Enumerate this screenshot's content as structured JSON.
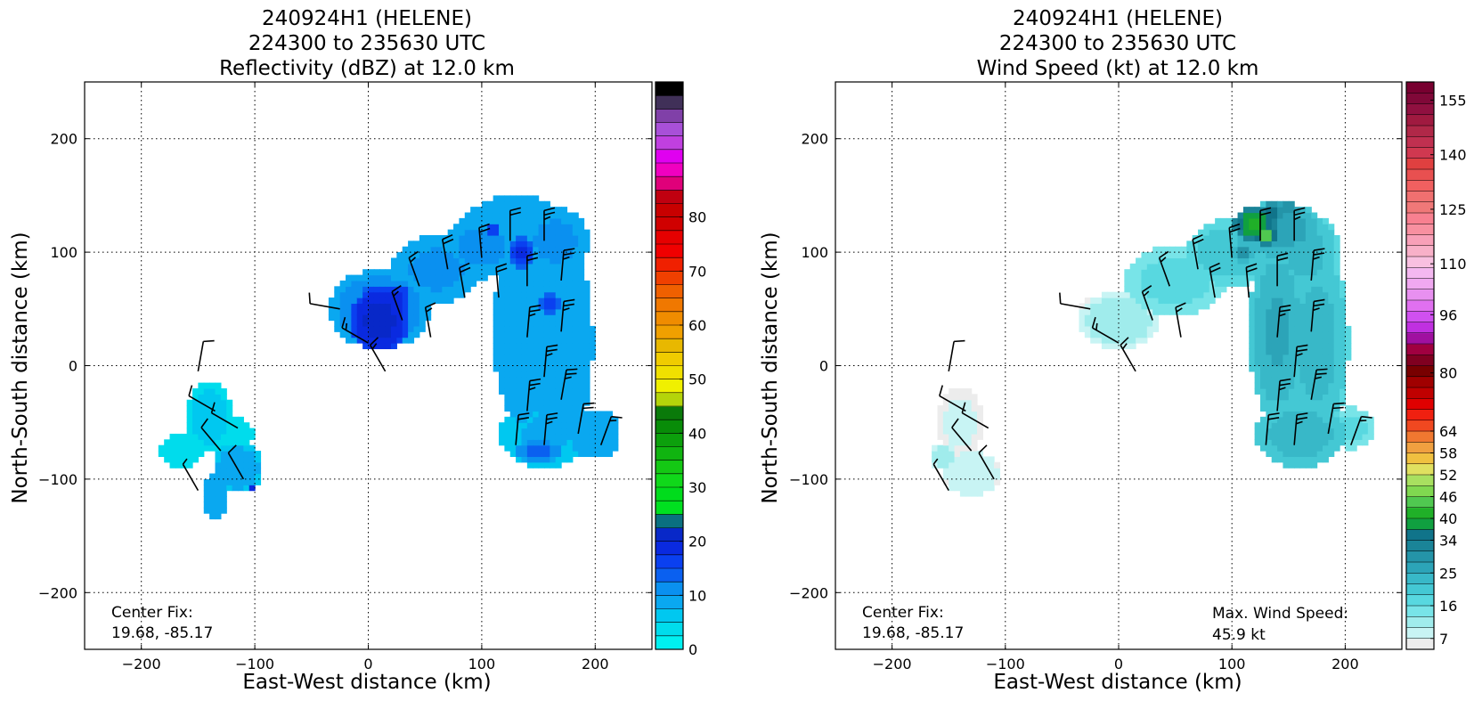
{
  "chart_data": [
    {
      "type": "heatmap",
      "title_lines": [
        "240924H1 (HELENE)",
        "224300 to 235630 UTC",
        "Reflectivity (dBZ) at 12.0 km"
      ],
      "xlabel": "East-West distance (km)",
      "ylabel": "North-South distance (km)",
      "xlim": [
        -250,
        250
      ],
      "ylim": [
        -250,
        250
      ],
      "xticks": [
        -200,
        -100,
        0,
        100,
        200
      ],
      "yticks": [
        -200,
        -100,
        0,
        100,
        200
      ],
      "tick_labels_x": [
        "−200",
        "−100",
        "0",
        "100",
        "200"
      ],
      "tick_labels_y": [
        "−200",
        "−100",
        "0",
        "100",
        "200"
      ],
      "grid": true,
      "colorbar": {
        "min": 0,
        "max": 80,
        "step": 2.5,
        "ticks": [
          0,
          10,
          20,
          30,
          40,
          50,
          60,
          70,
          80
        ],
        "tick_labels": [
          "0",
          "10",
          "20",
          "30",
          "40",
          "50",
          "60",
          "70",
          "80"
        ],
        "colors": [
          "#00f0f0",
          "#00dcec",
          "#00c8f0",
          "#0aa8f0",
          "#0a90f0",
          "#0a60f0",
          "#0a40f0",
          "#0a2ae0",
          "#0828c8",
          "#0a7080",
          "#00e020",
          "#00dc1c",
          "#10d81a",
          "#14c814",
          "#10b410",
          "#0ca00c",
          "#088c08",
          "#0a7a0a",
          "#b4d40a",
          "#f0f000",
          "#f0e000",
          "#f0cc00",
          "#e8b800",
          "#f0a000",
          "#f08c00",
          "#f07800",
          "#f06000",
          "#f04000",
          "#f02000",
          "#f00000",
          "#e60000",
          "#d00000",
          "#c80000",
          "#c00010",
          "#e0007a",
          "#f000c0",
          "#e000f0",
          "#c040e0",
          "#a850d8",
          "#8040a8",
          "#403058",
          "#000000"
        ]
      },
      "annotations": [
        {
          "line1": "Center Fix:",
          "line2": "19.68, -85.17"
        }
      ],
      "field": {
        "blobs": [
          {
            "x": 10,
            "y": 50,
            "rx": 45,
            "ry": 35,
            "v": 12
          },
          {
            "x": 60,
            "y": 85,
            "rx": 40,
            "ry": 30,
            "v": 11
          },
          {
            "x": 100,
            "y": 105,
            "rx": 35,
            "ry": 28,
            "v": 11
          },
          {
            "x": 130,
            "y": 125,
            "rx": 45,
            "ry": 25,
            "v": 10
          },
          {
            "x": 165,
            "y": 110,
            "rx": 30,
            "ry": 30,
            "v": 11
          },
          {
            "x": 135,
            "y": 30,
            "rx": 25,
            "ry": 80,
            "v": 10
          },
          {
            "x": 170,
            "y": 20,
            "rx": 28,
            "ry": 90,
            "v": 10
          },
          {
            "x": 155,
            "y": -60,
            "rx": 40,
            "ry": 30,
            "v": 8
          },
          {
            "x": 200,
            "y": -60,
            "rx": 22,
            "ry": 22,
            "v": 10
          },
          {
            "x": -140,
            "y": -45,
            "rx": 20,
            "ry": 30,
            "v": 6
          },
          {
            "x": -165,
            "y": -75,
            "rx": 18,
            "ry": 15,
            "v": 4
          },
          {
            "x": -115,
            "y": -90,
            "rx": 22,
            "ry": 22,
            "v": 9
          },
          {
            "x": -135,
            "y": -115,
            "rx": 12,
            "ry": 20,
            "v": 10
          },
          {
            "x": -120,
            "y": -60,
            "rx": 18,
            "ry": 15,
            "v": 5
          }
        ],
        "cores": [
          {
            "x": 10,
            "y": 40,
            "rx": 25,
            "ry": 30,
            "v": 22
          },
          {
            "x": 25,
            "y": 60,
            "rx": 12,
            "ry": 12,
            "v": 20
          },
          {
            "x": 135,
            "y": 100,
            "rx": 12,
            "ry": 15,
            "v": 18
          },
          {
            "x": 160,
            "y": 55,
            "rx": 10,
            "ry": 10,
            "v": 17
          },
          {
            "x": 110,
            "y": 120,
            "rx": 8,
            "ry": 6,
            "v": 18
          },
          {
            "x": -100,
            "y": -110,
            "rx": 8,
            "ry": 6,
            "v": 21
          },
          {
            "x": -2,
            "y": 65,
            "rx": 10,
            "ry": 8,
            "v": 14
          },
          {
            "x": 150,
            "y": -75,
            "rx": 20,
            "ry": 10,
            "v": 14
          }
        ]
      },
      "barbs": [
        {
          "x": -150,
          "y": -5,
          "dir": 10,
          "spd": 10
        },
        {
          "x": -135,
          "y": -40,
          "dir": 300,
          "spd": 10
        },
        {
          "x": -115,
          "y": -55,
          "dir": 300,
          "spd": 10
        },
        {
          "x": -130,
          "y": -75,
          "dir": 320,
          "spd": 10
        },
        {
          "x": -110,
          "y": -100,
          "dir": 330,
          "spd": 10
        },
        {
          "x": -150,
          "y": -110,
          "dir": 330,
          "spd": 5
        },
        {
          "x": -25,
          "y": 50,
          "dir": 280,
          "spd": 10
        },
        {
          "x": 0,
          "y": 20,
          "dir": 300,
          "spd": 15
        },
        {
          "x": 15,
          "y": -5,
          "dir": 330,
          "spd": 15
        },
        {
          "x": 30,
          "y": 40,
          "dir": 340,
          "spd": 15
        },
        {
          "x": 45,
          "y": 70,
          "dir": 340,
          "spd": 15
        },
        {
          "x": 55,
          "y": 25,
          "dir": 350,
          "spd": 15
        },
        {
          "x": 70,
          "y": 85,
          "dir": 350,
          "spd": 20
        },
        {
          "x": 85,
          "y": 60,
          "dir": 350,
          "spd": 20
        },
        {
          "x": 100,
          "y": 95,
          "dir": 355,
          "spd": 20
        },
        {
          "x": 115,
          "y": 60,
          "dir": 355,
          "spd": 20
        },
        {
          "x": 125,
          "y": 110,
          "dir": 0,
          "spd": 20
        },
        {
          "x": 140,
          "y": 70,
          "dir": 0,
          "spd": 20
        },
        {
          "x": 155,
          "y": 110,
          "dir": 0,
          "spd": 25
        },
        {
          "x": 170,
          "y": 75,
          "dir": 5,
          "spd": 25
        },
        {
          "x": 140,
          "y": 25,
          "dir": 5,
          "spd": 25
        },
        {
          "x": 155,
          "y": -10,
          "dir": 5,
          "spd": 25
        },
        {
          "x": 170,
          "y": 30,
          "dir": 5,
          "spd": 25
        },
        {
          "x": 140,
          "y": -40,
          "dir": 5,
          "spd": 25
        },
        {
          "x": 155,
          "y": -70,
          "dir": 5,
          "spd": 25
        },
        {
          "x": 170,
          "y": -30,
          "dir": 10,
          "spd": 25
        },
        {
          "x": 185,
          "y": -60,
          "dir": 10,
          "spd": 20
        },
        {
          "x": 205,
          "y": -70,
          "dir": 20,
          "spd": 15
        },
        {
          "x": 130,
          "y": -70,
          "dir": 5,
          "spd": 20
        }
      ]
    },
    {
      "type": "heatmap",
      "title_lines": [
        "240924H1 (HELENE)",
        "224300 to 235630 UTC",
        "Wind Speed (kt) at 12.0 km"
      ],
      "xlabel": "East-West distance (km)",
      "ylabel": "North-South distance (km)",
      "xlim": [
        -250,
        250
      ],
      "ylim": [
        -250,
        250
      ],
      "xticks": [
        -200,
        -100,
        0,
        100,
        200
      ],
      "yticks": [
        -200,
        -100,
        0,
        100,
        200
      ],
      "tick_labels_x": [
        "−200",
        "−100",
        "0",
        "100",
        "200"
      ],
      "tick_labels_y": [
        "−200",
        "−100",
        "0",
        "100",
        "200"
      ],
      "grid": true,
      "colorbar": {
        "min": 4,
        "max": 160,
        "step": 3,
        "ticks": [
          7,
          16,
          25,
          34,
          40,
          46,
          52,
          58,
          64,
          80,
          96,
          110,
          125,
          140,
          155
        ],
        "tick_labels": [
          "7",
          "16",
          "25",
          "34",
          "40",
          "46",
          "52",
          "58",
          "64",
          "80",
          "96",
          "110",
          "125",
          "140",
          "155"
        ],
        "colors": [
          "#ececec",
          "#c8f4f4",
          "#a0ecec",
          "#78e4e8",
          "#58d8e0",
          "#44c8d4",
          "#38b8c8",
          "#2ca4b8",
          "#2494a8",
          "#1a8498",
          "#10748a",
          "#10a040",
          "#20b028",
          "#50c850",
          "#80d850",
          "#a8e060",
          "#e0e060",
          "#f0c040",
          "#f0a040",
          "#f07830",
          "#f04820",
          "#f02010",
          "#e00000",
          "#c00000",
          "#a00000",
          "#780000",
          "#800020",
          "#a00040",
          "#a010a0",
          "#c030e0",
          "#d050f0",
          "#e070f0",
          "#e890f0",
          "#f0a8f0",
          "#f4b8f0",
          "#f8c0e0",
          "#f8b0c8",
          "#f8a0b8",
          "#f890a0",
          "#f88090",
          "#f07878",
          "#f07070",
          "#f06060",
          "#e85050",
          "#e04040",
          "#d03850",
          "#c03050",
          "#b02848",
          "#a01a40",
          "#901040",
          "#800838",
          "#780030"
        ]
      },
      "annotations": [
        {
          "line1": "Center Fix:",
          "line2": "19.68, -85.17"
        },
        {
          "line1": "Max. Wind Speed:",
          "line2": "45.9 kt"
        }
      ],
      "field": {
        "blobs": [
          {
            "x": 0,
            "y": 40,
            "rx": 35,
            "ry": 25,
            "v": 12
          },
          {
            "x": 50,
            "y": 75,
            "rx": 45,
            "ry": 30,
            "v": 18
          },
          {
            "x": 100,
            "y": 100,
            "rx": 40,
            "ry": 30,
            "v": 22
          },
          {
            "x": 140,
            "y": 120,
            "rx": 40,
            "ry": 25,
            "v": 28
          },
          {
            "x": 165,
            "y": 100,
            "rx": 30,
            "ry": 35,
            "v": 24
          },
          {
            "x": 140,
            "y": 30,
            "rx": 25,
            "ry": 80,
            "v": 26
          },
          {
            "x": 175,
            "y": 20,
            "rx": 28,
            "ry": 90,
            "v": 24
          },
          {
            "x": 160,
            "y": -60,
            "rx": 40,
            "ry": 30,
            "v": 25
          },
          {
            "x": 205,
            "y": -55,
            "rx": 20,
            "ry": 18,
            "v": 18
          },
          {
            "x": -140,
            "y": -50,
            "rx": 20,
            "ry": 30,
            "v": 8
          },
          {
            "x": -130,
            "y": -95,
            "rx": 25,
            "ry": 20,
            "v": 9
          },
          {
            "x": -155,
            "y": -80,
            "rx": 10,
            "ry": 12,
            "v": 12
          },
          {
            "x": -20,
            "y": 45,
            "rx": 15,
            "ry": 15,
            "v": 7
          }
        ],
        "cores": [
          {
            "x": 120,
            "y": 125,
            "rx": 20,
            "ry": 15,
            "v": 42
          },
          {
            "x": 130,
            "y": 115,
            "rx": 10,
            "ry": 8,
            "v": 46
          },
          {
            "x": 135,
            "y": 135,
            "rx": 10,
            "ry": 10,
            "v": 36
          },
          {
            "x": 110,
            "y": 100,
            "rx": 10,
            "ry": 10,
            "v": 30
          },
          {
            "x": 150,
            "y": 140,
            "rx": 12,
            "ry": 8,
            "v": 30
          }
        ]
      },
      "barbs": [
        {
          "x": -150,
          "y": -5,
          "dir": 10,
          "spd": 10
        },
        {
          "x": -135,
          "y": -40,
          "dir": 300,
          "spd": 10
        },
        {
          "x": -115,
          "y": -55,
          "dir": 300,
          "spd": 10
        },
        {
          "x": -130,
          "y": -75,
          "dir": 320,
          "spd": 10
        },
        {
          "x": -110,
          "y": -100,
          "dir": 330,
          "spd": 10
        },
        {
          "x": -150,
          "y": -110,
          "dir": 330,
          "spd": 5
        },
        {
          "x": -25,
          "y": 50,
          "dir": 280,
          "spd": 10
        },
        {
          "x": 0,
          "y": 20,
          "dir": 300,
          "spd": 15
        },
        {
          "x": 15,
          "y": -5,
          "dir": 330,
          "spd": 15
        },
        {
          "x": 30,
          "y": 40,
          "dir": 340,
          "spd": 15
        },
        {
          "x": 45,
          "y": 70,
          "dir": 340,
          "spd": 15
        },
        {
          "x": 55,
          "y": 25,
          "dir": 350,
          "spd": 15
        },
        {
          "x": 70,
          "y": 85,
          "dir": 350,
          "spd": 20
        },
        {
          "x": 85,
          "y": 60,
          "dir": 350,
          "spd": 20
        },
        {
          "x": 100,
          "y": 95,
          "dir": 355,
          "spd": 20
        },
        {
          "x": 115,
          "y": 60,
          "dir": 355,
          "spd": 20
        },
        {
          "x": 125,
          "y": 110,
          "dir": 0,
          "spd": 20
        },
        {
          "x": 140,
          "y": 70,
          "dir": 0,
          "spd": 20
        },
        {
          "x": 155,
          "y": 110,
          "dir": 0,
          "spd": 25
        },
        {
          "x": 170,
          "y": 75,
          "dir": 5,
          "spd": 25
        },
        {
          "x": 140,
          "y": 25,
          "dir": 5,
          "spd": 25
        },
        {
          "x": 155,
          "y": -10,
          "dir": 5,
          "spd": 25
        },
        {
          "x": 170,
          "y": 30,
          "dir": 5,
          "spd": 25
        },
        {
          "x": 140,
          "y": -40,
          "dir": 5,
          "spd": 25
        },
        {
          "x": 155,
          "y": -70,
          "dir": 5,
          "spd": 25
        },
        {
          "x": 170,
          "y": -30,
          "dir": 10,
          "spd": 25
        },
        {
          "x": 185,
          "y": -60,
          "dir": 10,
          "spd": 20
        },
        {
          "x": 205,
          "y": -70,
          "dir": 20,
          "spd": 15
        },
        {
          "x": 130,
          "y": -70,
          "dir": 5,
          "spd": 20
        }
      ]
    }
  ]
}
